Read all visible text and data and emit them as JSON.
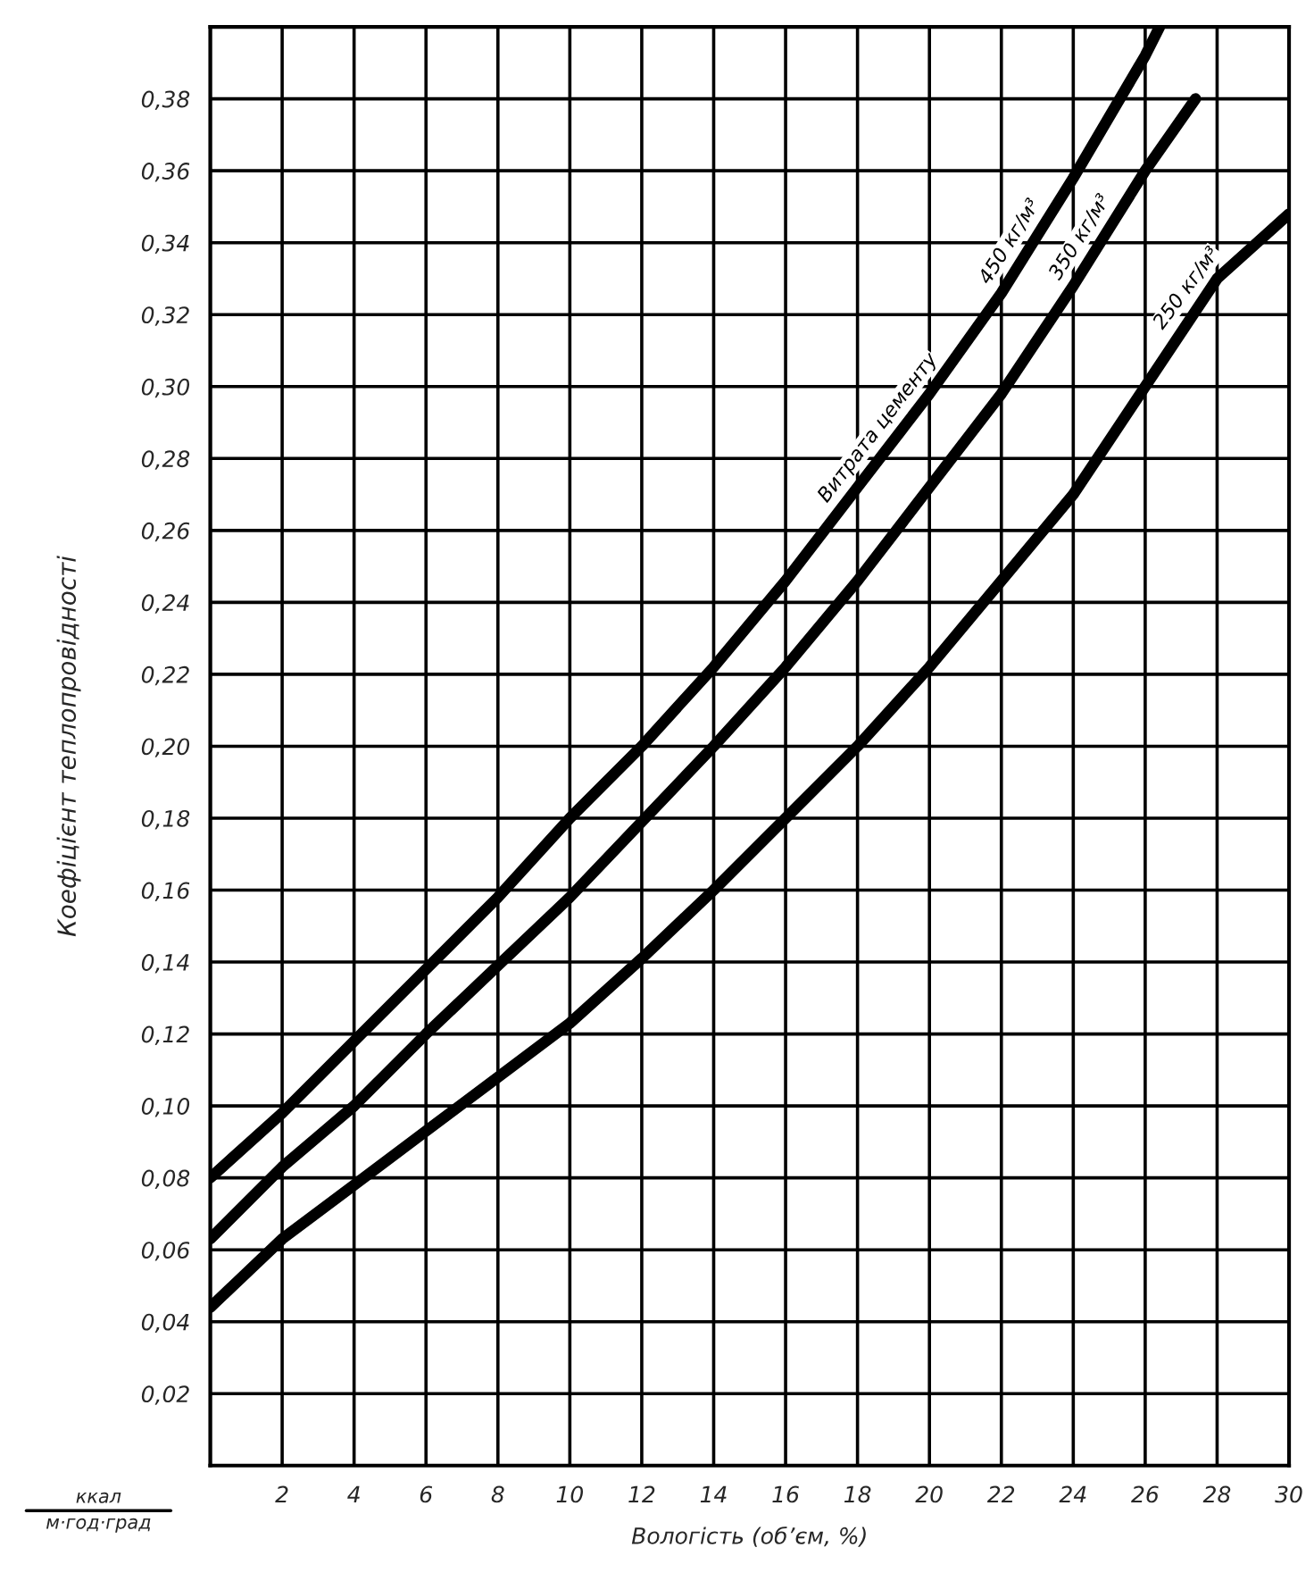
{
  "chart_data": {
    "type": "line",
    "xlabel": "Вологість (об’єм, %)",
    "ylabel": "Коефіцієнт теплопровідності",
    "annotations": [
      "ккал",
      "м·год·град"
    ],
    "xlim": [
      0,
      30
    ],
    "ylim": [
      0,
      0.4
    ],
    "xticks": [
      {
        "value": 0,
        "label": null
      },
      2,
      4,
      6,
      8,
      10,
      12,
      14,
      16,
      18,
      20,
      22,
      24,
      26,
      28,
      30
    ],
    "yticks": [
      {
        "value": 0,
        "label": null
      },
      {
        "value": 0.02,
        "label": "0,02"
      },
      {
        "value": 0.04,
        "label": "0,04"
      },
      {
        "value": 0.06,
        "label": "0,06"
      },
      {
        "value": 0.08,
        "label": "0,08"
      },
      {
        "value": 0.1,
        "label": "0,10"
      },
      {
        "value": 0.12,
        "label": "0,12"
      },
      {
        "value": 0.14,
        "label": "0,14"
      },
      {
        "value": 0.16,
        "label": "0,16"
      },
      {
        "value": 0.18,
        "label": "0,18"
      },
      {
        "value": 0.2,
        "label": "0,20"
      },
      {
        "value": 0.22,
        "label": "0,22"
      },
      {
        "value": 0.24,
        "label": "0,24"
      },
      {
        "value": 0.26,
        "label": "0,26"
      },
      {
        "value": 0.28,
        "label": "0,28"
      },
      {
        "value": 0.3,
        "label": "0,30"
      },
      {
        "value": 0.32,
        "label": "0,32"
      },
      {
        "value": 0.34,
        "label": "0,34"
      },
      {
        "value": 0.36,
        "label": "0,36"
      },
      {
        "value": 0.38,
        "label": "0,38"
      },
      {
        "value": 0.4,
        "label": null
      }
    ],
    "legend_title": "Витрата цементу",
    "grid": true,
    "legend": false,
    "marker": "none",
    "line_style": "solid",
    "series": [
      {
        "name": "450 кг/м³",
        "color": "#000000",
        "x": [
          0,
          2,
          4,
          6,
          8,
          10,
          12,
          14,
          16,
          18,
          20,
          22,
          24,
          26,
          26.4
        ],
        "values": [
          0.08,
          0.098,
          0.118,
          0.138,
          0.158,
          0.18,
          0.2,
          0.222,
          0.246,
          0.272,
          0.298,
          0.326,
          0.358,
          0.392,
          0.4
        ]
      },
      {
        "name": "350 кг/м³",
        "color": "#000000",
        "x": [
          0,
          2,
          4,
          6,
          8,
          10,
          12,
          14,
          16,
          18,
          20,
          22,
          24,
          26,
          27.4
        ],
        "values": [
          0.063,
          0.083,
          0.1,
          0.12,
          0.139,
          0.158,
          0.179,
          0.2,
          0.222,
          0.246,
          0.272,
          0.298,
          0.328,
          0.36,
          0.38
        ]
      },
      {
        "name": "250 кг/м³",
        "color": "#000000",
        "x": [
          0,
          2,
          4,
          6,
          8,
          10,
          12,
          14,
          16,
          18,
          20,
          22,
          24,
          26,
          28,
          30
        ],
        "values": [
          0.044,
          0.063,
          0.078,
          0.093,
          0.108,
          0.123,
          0.141,
          0.16,
          0.18,
          0.2,
          0.222,
          0.246,
          0.27,
          0.3,
          0.33,
          0.348
        ]
      }
    ]
  }
}
